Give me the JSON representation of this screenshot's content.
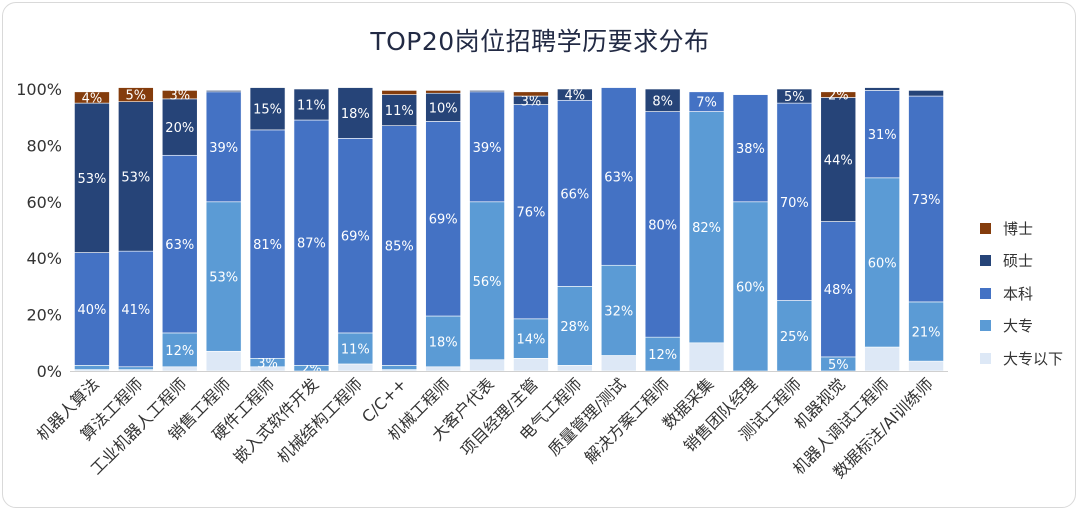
{
  "chart_data": {
    "type": "bar",
    "stacked": true,
    "title": "TOP20岗位招聘学历要求分布",
    "xlabel": "",
    "ylabel": "",
    "ylim": [
      0,
      100
    ],
    "yticks": [
      "0%",
      "20%",
      "40%",
      "60%",
      "80%",
      "100%"
    ],
    "legend_position": "right",
    "categories": [
      "机器人算法",
      "算法工程师",
      "工业机器人工程师",
      "销售工程师",
      "硬件工程师",
      "嵌入式软件开发",
      "机械结构工程师",
      "C/C++",
      "机械工程师",
      "大客户代表",
      "项目经理/主管",
      "电气工程师",
      "质量管理/测试",
      "解决方案工程师",
      "数据采集",
      "销售团队经理",
      "测试工程师",
      "机器视觉",
      "机器人调试工程师",
      "数据标注/AI训练师"
    ],
    "series": [
      {
        "name": "大专以下",
        "color": "#dde8f6",
        "values": [
          0.5,
          0.5,
          1.5,
          7,
          1.5,
          0,
          2.5,
          0.5,
          1.5,
          4,
          4.5,
          2,
          5.5,
          0,
          10,
          0,
          0,
          0,
          8.5,
          3.5
        ],
        "labels": [
          "",
          "",
          "",
          "",
          "",
          "",
          "",
          "",
          "",
          "",
          "",
          "",
          "",
          "",
          "",
          "",
          "",
          "",
          "",
          ""
        ]
      },
      {
        "name": "大专",
        "color": "#5b9bd5",
        "values": [
          1.5,
          1,
          12,
          53,
          3,
          2,
          11,
          1.5,
          18,
          56,
          14,
          28,
          32,
          12,
          82,
          60,
          25,
          5,
          60,
          21
        ],
        "labels": [
          "",
          "",
          "12%",
          "53%",
          "3%",
          "2%",
          "11%",
          "",
          "18%",
          "56%",
          "14%",
          "28%",
          "32%",
          "12%",
          "82%",
          "60%",
          "25%",
          "5%",
          "60%",
          "21%"
        ]
      },
      {
        "name": "本科",
        "color": "#4472c4",
        "values": [
          40,
          41,
          63,
          39,
          81,
          87,
          69,
          85,
          69,
          39,
          76,
          66,
          63,
          80,
          7,
          38,
          70,
          48,
          31,
          73
        ],
        "labels": [
          "40%",
          "41%",
          "63%",
          "39%",
          "81%",
          "87%",
          "69%",
          "85%",
          "69%",
          "39%",
          "76%",
          "66%",
          "63%",
          "80%",
          "7%",
          "38%",
          "70%",
          "48%",
          "31%",
          "73%"
        ]
      },
      {
        "name": "硕士",
        "color": "#264478",
        "values": [
          53,
          53,
          20,
          0.5,
          15,
          11,
          18,
          11,
          10,
          0.5,
          3,
          4,
          0,
          8,
          0,
          0,
          5,
          44,
          1,
          2
        ],
        "labels": [
          "53%",
          "53%",
          "20%",
          "",
          "15%",
          "11%",
          "18%",
          "11%",
          "10%",
          "",
          "3%",
          "4%",
          "",
          "8%",
          "",
          "",
          "5%",
          "44%",
          "",
          ""
        ]
      },
      {
        "name": "博士",
        "color": "#843c0c",
        "values": [
          4,
          5,
          3,
          0,
          0,
          0,
          0,
          1.5,
          1,
          0,
          1.5,
          0,
          0,
          0,
          0,
          0,
          0,
          2,
          0,
          0
        ],
        "labels": [
          "4%",
          "5%",
          "3%",
          "",
          "",
          "",
          "",
          "",
          "",
          "",
          "",
          "",
          "",
          "",
          "",
          "",
          "",
          "2%",
          "",
          ""
        ]
      }
    ]
  }
}
